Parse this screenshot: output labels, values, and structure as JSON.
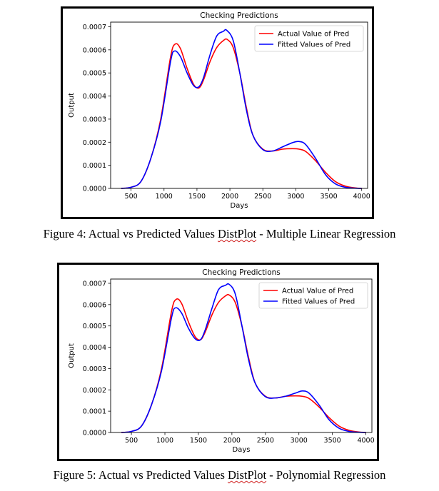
{
  "colors": {
    "actual": "#ff0000",
    "fitted": "#0000ff"
  },
  "chart_data": [
    {
      "type": "line",
      "title": "Checking Predictions",
      "xlabel": "Days",
      "ylabel": "Output",
      "xlim": [
        190,
        4090
      ],
      "ylim": [
        0,
        0.00072
      ],
      "xticks": [
        500,
        1000,
        1500,
        2000,
        2500,
        3000,
        3500,
        4000
      ],
      "yticks": [
        0.0,
        0.0001,
        0.0002,
        0.0003,
        0.0004,
        0.0005,
        0.0006,
        0.0007
      ],
      "ytick_labels": [
        "0.0000",
        "0.0001",
        "0.0002",
        "0.0003",
        "0.0004",
        "0.0005",
        "0.0006",
        "0.0007"
      ],
      "legend": "top-right",
      "grid": false,
      "series": [
        {
          "name": "Actual Value of Pred",
          "color": "#ff0000",
          "x": [
            350,
            500,
            650,
            800,
            950,
            1100,
            1170,
            1250,
            1350,
            1450,
            1530,
            1600,
            1700,
            1800,
            1900,
            1960,
            2050,
            2150,
            2250,
            2350,
            2500,
            2650,
            2800,
            2950,
            3050,
            3150,
            3300,
            3450,
            3600,
            3750,
            3900,
            4000
          ],
          "y": [
            0,
            5e-06,
            3e-05,
            0.00013,
            0.0003,
            0.00057,
            0.000625,
            0.000605,
            0.00052,
            0.00045,
            0.000435,
            0.00047,
            0.00055,
            0.00061,
            0.00064,
            0.000645,
            0.00061,
            0.0005,
            0.00035,
            0.00023,
            0.00017,
            0.000162,
            0.00017,
            0.000172,
            0.00017,
            0.00016,
            0.00012,
            7e-05,
            3e-05,
            1e-05,
            2e-06,
            0
          ]
        },
        {
          "name": "Fitted Values of Pred",
          "color": "#0000ff",
          "x": [
            350,
            500,
            650,
            800,
            950,
            1100,
            1160,
            1250,
            1350,
            1450,
            1530,
            1600,
            1700,
            1800,
            1900,
            1950,
            2050,
            2150,
            2250,
            2350,
            2500,
            2650,
            2800,
            2950,
            3050,
            3150,
            3300,
            3450,
            3600,
            3750,
            3900,
            4000
          ],
          "y": [
            0,
            5e-06,
            3e-05,
            0.00013,
            0.00029,
            0.00055,
            0.000595,
            0.00057,
            0.0005,
            0.000445,
            0.00044,
            0.00048,
            0.00058,
            0.00066,
            0.00068,
            0.000685,
            0.00064,
            0.0005,
            0.00034,
            0.00023,
            0.000168,
            0.000162,
            0.00018,
            0.000198,
            0.000203,
            0.00019,
            0.00013,
            6e-05,
            2e-05,
            5e-06,
            1e-06,
            0
          ]
        }
      ]
    },
    {
      "type": "line",
      "title": "Checking Predictions",
      "xlabel": "Days",
      "ylabel": "Output",
      "xlim": [
        190,
        4090
      ],
      "ylim": [
        0,
        0.00072
      ],
      "xticks": [
        500,
        1000,
        1500,
        2000,
        2500,
        3000,
        3500,
        4000
      ],
      "yticks": [
        0.0,
        0.0001,
        0.0002,
        0.0003,
        0.0004,
        0.0005,
        0.0006,
        0.0007
      ],
      "ytick_labels": [
        "0.0000",
        "0.0001",
        "0.0002",
        "0.0003",
        "0.0004",
        "0.0005",
        "0.0006",
        "0.0007"
      ],
      "legend": "top-right",
      "grid": false,
      "series": [
        {
          "name": "Actual Value of Pred",
          "color": "#ff0000",
          "x": [
            350,
            500,
            650,
            800,
            950,
            1100,
            1170,
            1250,
            1350,
            1450,
            1530,
            1600,
            1700,
            1800,
            1900,
            1960,
            2050,
            2150,
            2250,
            2350,
            2500,
            2650,
            2800,
            2950,
            3050,
            3150,
            3300,
            3450,
            3600,
            3750,
            3900,
            4000
          ],
          "y": [
            0,
            5e-06,
            3e-05,
            0.00013,
            0.0003,
            0.00057,
            0.000625,
            0.000605,
            0.00052,
            0.00045,
            0.000435,
            0.00047,
            0.00055,
            0.00061,
            0.00064,
            0.000645,
            0.00061,
            0.0005,
            0.00035,
            0.00023,
            0.00017,
            0.000162,
            0.00017,
            0.000172,
            0.00017,
            0.00016,
            0.00012,
            7e-05,
            3e-05,
            1e-05,
            2e-06,
            0
          ]
        },
        {
          "name": "Fitted Values of Pred",
          "color": "#0000ff",
          "x": [
            350,
            500,
            650,
            800,
            950,
            1100,
            1160,
            1250,
            1350,
            1450,
            1530,
            1600,
            1700,
            1800,
            1900,
            1960,
            2050,
            2150,
            2250,
            2350,
            2500,
            2650,
            2800,
            2950,
            3050,
            3150,
            3300,
            3450,
            3600,
            3750,
            3900,
            4000
          ],
          "y": [
            0,
            5e-06,
            3e-05,
            0.00013,
            0.00029,
            0.00054,
            0.000585,
            0.00056,
            0.00049,
            0.00044,
            0.000435,
            0.00048,
            0.00058,
            0.00067,
            0.00069,
            0.000695,
            0.00065,
            0.0005,
            0.00034,
            0.00023,
            0.000168,
            0.000162,
            0.00017,
            0.000185,
            0.000195,
            0.000185,
            0.00013,
            6e-05,
            2e-05,
            5e-06,
            1e-06,
            0
          ]
        }
      ]
    }
  ],
  "captions": [
    {
      "before": "Figure 4: Actual vs Predicted Values ",
      "squiggle": "DistPlot",
      "after": " - Multiple Linear Regression"
    },
    {
      "before": "Figure 5: Actual vs Predicted Values ",
      "squiggle": "DistPlot",
      "after": " - Polynomial Regression"
    }
  ]
}
